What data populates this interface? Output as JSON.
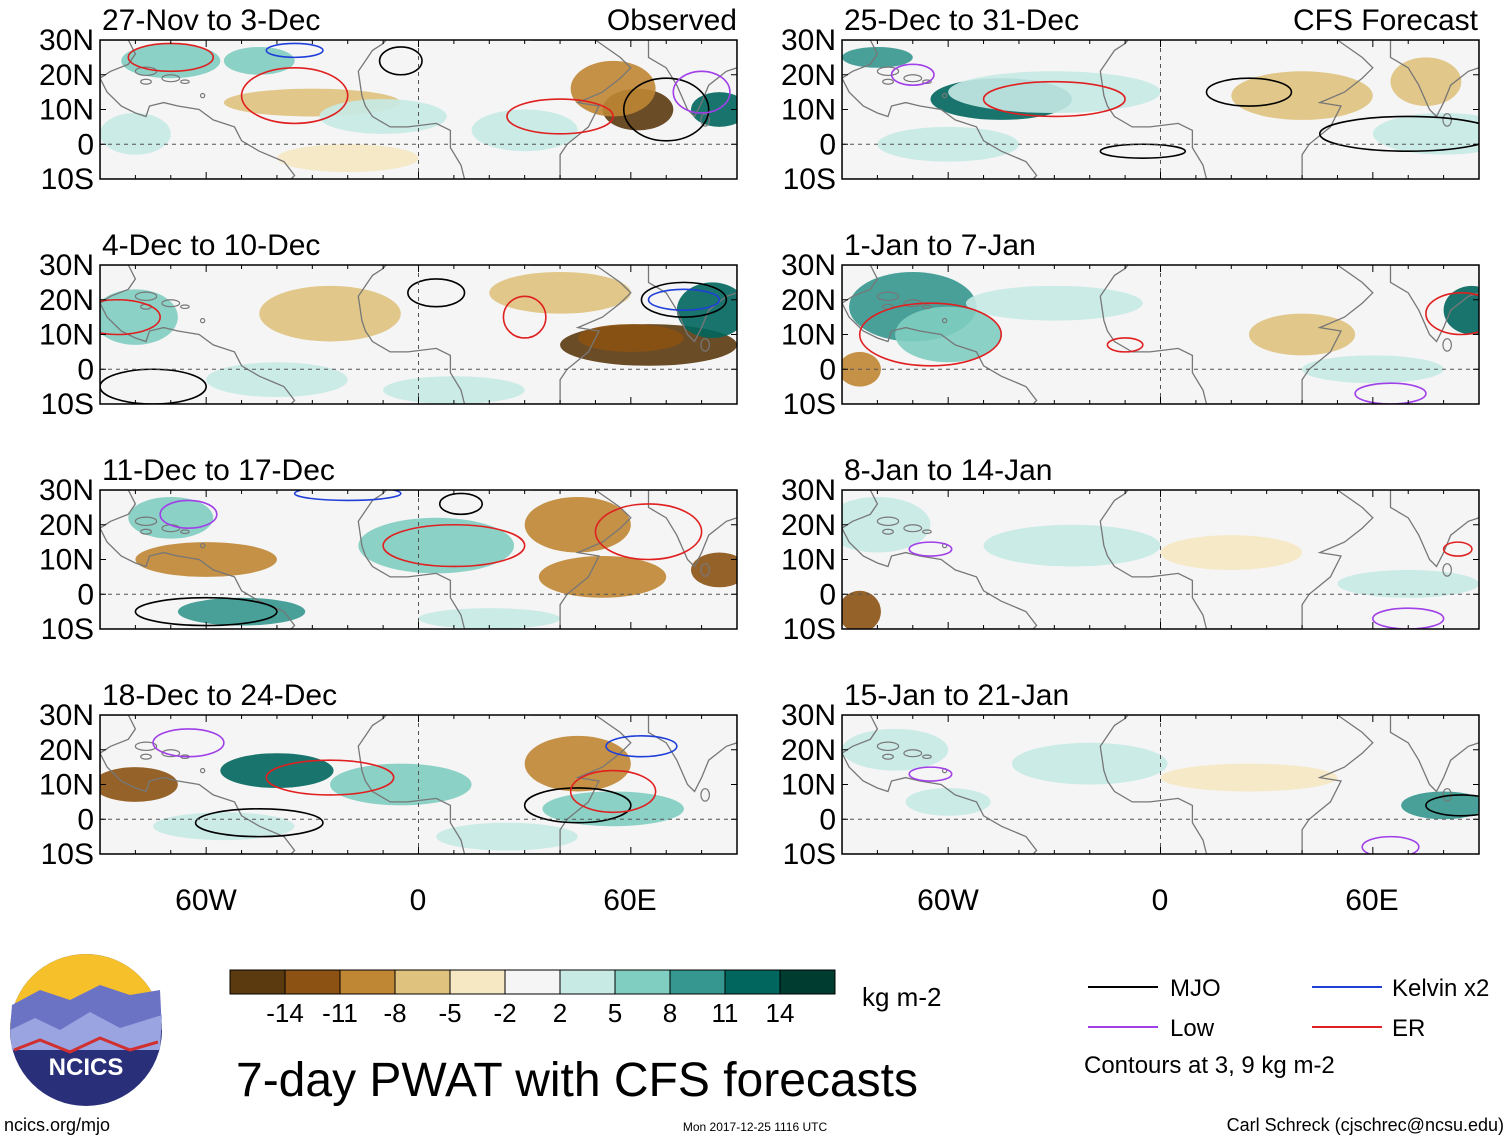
{
  "title": "7-day PWAT with CFS forecasts",
  "units_label": "kg m-2",
  "column_labels": {
    "left": "Observed",
    "right": "CFS Forecast"
  },
  "panels": [
    {
      "label": "27-Nov to 3-Dec",
      "source": "observed"
    },
    {
      "label": "4-Dec to 10-Dec",
      "source": "observed"
    },
    {
      "label": "11-Dec to 17-Dec",
      "source": "observed"
    },
    {
      "label": "18-Dec to 24-Dec",
      "source": "observed"
    },
    {
      "label": "25-Dec to 31-Dec",
      "source": "forecast"
    },
    {
      "label": "1-Jan to 7-Jan",
      "source": "forecast"
    },
    {
      "label": "8-Jan to 14-Jan",
      "source": "forecast"
    },
    {
      "label": "15-Jan to 21-Jan",
      "source": "forecast"
    }
  ],
  "lat_labels": [
    "30N",
    "20N",
    "10N",
    "0",
    "10S"
  ],
  "lon_labels": [
    "60W",
    "0",
    "60E"
  ],
  "colorbar": {
    "tick_labels": [
      "-14",
      "-11",
      "-8",
      "-5",
      "-2",
      "2",
      "5",
      "8",
      "11",
      "14"
    ],
    "colors": [
      "#5b3a10",
      "#8b5213",
      "#bf8634",
      "#dfc27d",
      "#f6e8c3",
      "#f5f5f5",
      "#c7eae5",
      "#80cdc1",
      "#35978f",
      "#01665e",
      "#003c30"
    ]
  },
  "legend": {
    "items": [
      {
        "label": "MJO",
        "color": "#000000"
      },
      {
        "label": "Kelvin x2",
        "color": "#1f3fd8"
      },
      {
        "label": "Low",
        "color": "#a040e8"
      },
      {
        "label": "ER",
        "color": "#e02020"
      }
    ],
    "note": "Contours at 3, 9 kg m-2"
  },
  "logo": {
    "text": "NCICS"
  },
  "footer": {
    "left": "ncics.org/mjo",
    "center": "Mon 2017-12-25 1116 UTC",
    "right": "Carl Schreck (cjschrec@ncsu.edu)"
  }
}
